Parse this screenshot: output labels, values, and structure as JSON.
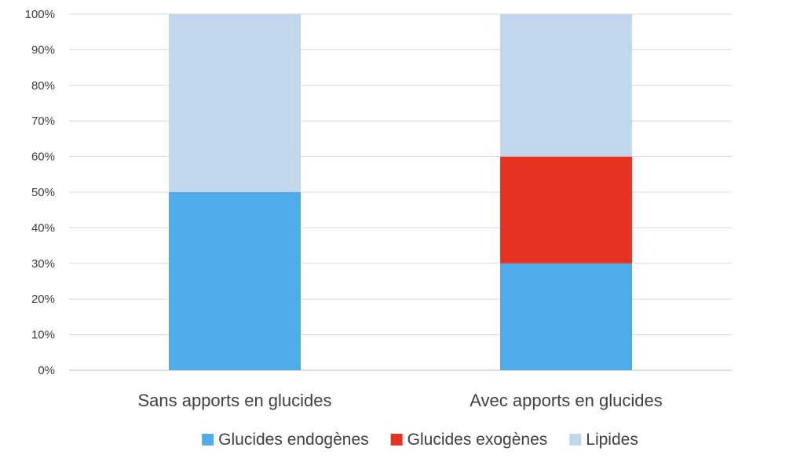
{
  "chart_data": {
    "type": "bar",
    "stacked": true,
    "categories": [
      "Sans apports en glucides",
      "Avec apports en glucides"
    ],
    "series": [
      {
        "name": "Glucides endogènes",
        "color": "#4FACE8",
        "values": [
          50,
          30
        ]
      },
      {
        "name": "Glucides exogènes",
        "color": "#E83323",
        "values": [
          0,
          30
        ]
      },
      {
        "name": "Lipides",
        "color": "#C2D6EC",
        "values": [
          50,
          40
        ]
      }
    ],
    "ylim": [
      0,
      100
    ],
    "yticks": [
      "0%",
      "10%",
      "20%",
      "30%",
      "40%",
      "50%",
      "60%",
      "70%",
      "80%",
      "90%",
      "100%"
    ],
    "grid": true,
    "legend": "bottom",
    "title": "",
    "xlabel": "",
    "ylabel": ""
  }
}
